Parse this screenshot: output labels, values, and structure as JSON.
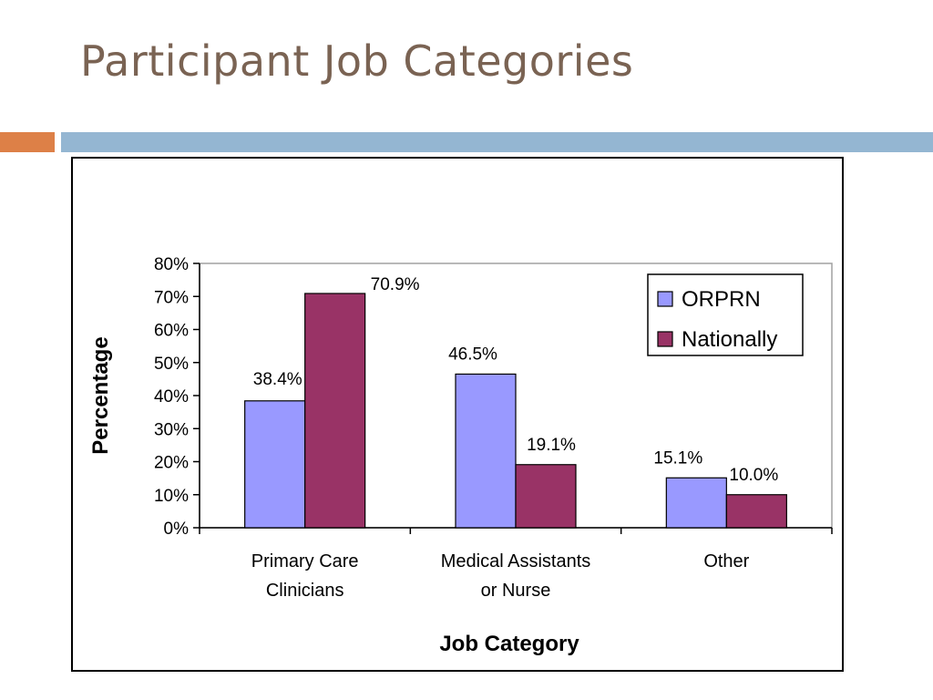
{
  "slide": {
    "title": "Participant Job Categories",
    "accent_colors": {
      "orange": "#dd8047",
      "blue": "#94b6d2"
    }
  },
  "chart_data": {
    "type": "bar",
    "xlabel": "Job Category",
    "ylabel": "Percentage",
    "ylim": [
      0,
      80
    ],
    "yticks": [
      "0%",
      "10%",
      "20%",
      "30%",
      "40%",
      "50%",
      "60%",
      "70%",
      "80%"
    ],
    "categories": [
      [
        "Primary Care",
        "Clinicians"
      ],
      [
        "Medical Assistants",
        "or Nurse"
      ],
      [
        "Other"
      ]
    ],
    "series": [
      {
        "name": "ORPRN",
        "color": "#9999ff",
        "values": [
          38.4,
          46.5,
          15.1
        ],
        "labels": [
          "38.4%",
          "46.5%",
          "15.1%"
        ]
      },
      {
        "name": "Nationally",
        "color": "#993366",
        "values": [
          70.9,
          19.1,
          10.0
        ],
        "labels": [
          "70.9%",
          "19.1%",
          "10.0%"
        ]
      }
    ],
    "grid": false,
    "legend_position": "top-right"
  }
}
